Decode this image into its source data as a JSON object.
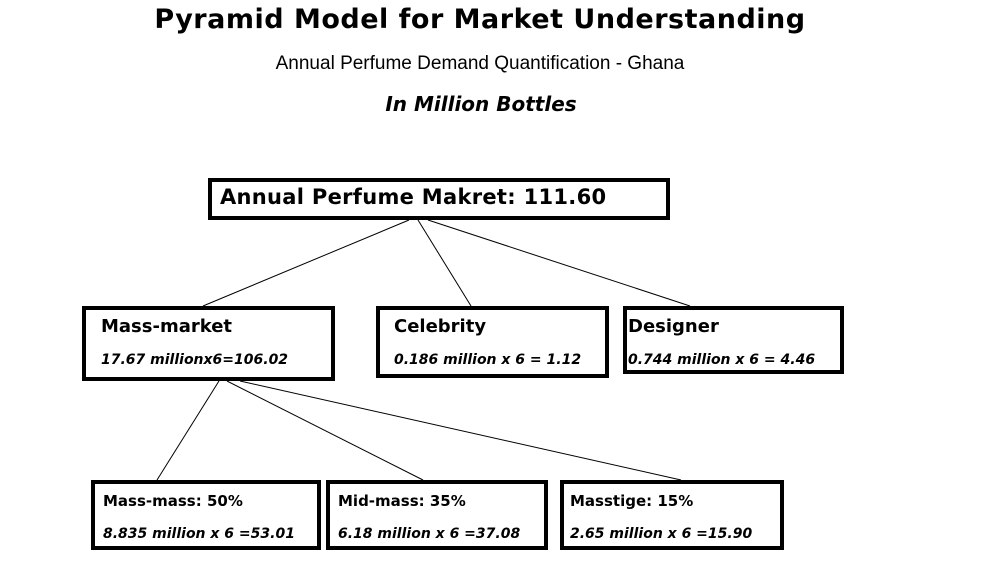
{
  "header": {
    "title": "Pyramid Model for Market Understanding",
    "subtitle": "Annual Perfume Demand Quantification - Ghana",
    "units": "In Million Bottles"
  },
  "root": {
    "label": "Annual Perfume Makret: 111.60"
  },
  "segments": [
    {
      "label": "Mass-market",
      "value": "17.67 millionx6=106.02"
    },
    {
      "label": "Celebrity",
      "value": "0.186 million x 6 = 1.12"
    },
    {
      "label": "Designer",
      "value": "0.744 million x 6 = 4.46"
    }
  ],
  "mass_market_subsegments": [
    {
      "label": "Mass-mass: 50%",
      "value": "8.835 million x 6 =53.01"
    },
    {
      "label": "Mid-mass: 35%",
      "value": "6.18 million x 6 =37.08"
    },
    {
      "label": "Masstige: 15%",
      "value": "2.65 million x 6 =15.90"
    }
  ]
}
